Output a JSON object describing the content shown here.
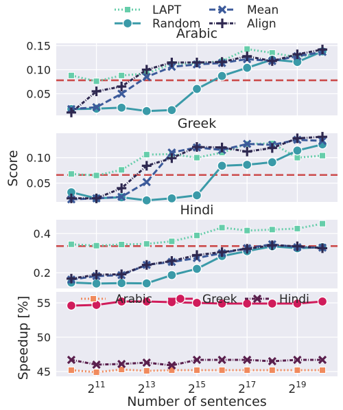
{
  "legend_top": [
    {
      "name": "LAPT",
      "color": "#66cdaa",
      "dash": "2,3",
      "marker": "square"
    },
    {
      "name": "Random",
      "color": "#3a9aa8",
      "dash": "",
      "marker": "circle"
    },
    {
      "name": "Mean",
      "color": "#3c5a9a",
      "dash": "9,4",
      "marker": "x"
    },
    {
      "name": "Align",
      "color": "#2e2850",
      "dash": "5,2,1,2",
      "marker": "plus"
    }
  ],
  "legend_bottom": [
    {
      "name": "Arabic",
      "color": "#f08a5d",
      "dash": "2,3",
      "marker": "square"
    },
    {
      "name": "Greek",
      "color": "#d01c5b",
      "dash": "",
      "marker": "circle"
    },
    {
      "name": "Hindi",
      "color": "#5a1f4d",
      "dash": "5,2,1,2",
      "marker": "x"
    }
  ],
  "chart_data": [
    {
      "type": "line",
      "title": "Arabic",
      "x": [
        10,
        11,
        12,
        13,
        14,
        15,
        16,
        17,
        18,
        19,
        20
      ],
      "ylim": [
        0.005,
        0.155
      ],
      "yticks": [
        {
          "v": 0.05,
          "label": "0.05"
        },
        {
          "v": 0.1,
          "label": "0.10"
        },
        {
          "v": 0.15,
          "label": "0.15"
        }
      ],
      "baseline": 0.078,
      "series": [
        {
          "name": "LAPT",
          "values": [
            0.088,
            0.076,
            0.088,
            0.092,
            0.112,
            0.113,
            0.118,
            0.143,
            0.135,
            0.126,
            0.136
          ]
        },
        {
          "name": "Random",
          "values": [
            0.018,
            0.019,
            0.021,
            0.014,
            0.016,
            0.06,
            0.087,
            0.104,
            0.121,
            0.116,
            0.138
          ]
        },
        {
          "name": "Mean",
          "values": [
            0.018,
            0.022,
            0.05,
            0.085,
            0.106,
            0.111,
            0.114,
            0.122,
            0.118,
            0.128,
            0.137
          ]
        },
        {
          "name": "Align",
          "values": [
            0.011,
            0.055,
            0.065,
            0.1,
            0.115,
            0.115,
            0.116,
            0.128,
            0.118,
            0.132,
            0.142
          ]
        }
      ]
    },
    {
      "type": "line",
      "title": "Greek",
      "x": [
        10,
        11,
        12,
        13,
        14,
        15,
        16,
        17,
        18,
        19,
        20
      ],
      "ylim": [
        0.013,
        0.148
      ],
      "yticks": [
        {
          "v": 0.05,
          "label": "0.05"
        },
        {
          "v": 0.1,
          "label": "0.10"
        }
      ],
      "ylabel": "Score",
      "baseline": 0.066,
      "series": [
        {
          "name": "LAPT",
          "values": [
            0.068,
            0.065,
            0.076,
            0.106,
            0.107,
            0.1,
            0.11,
            0.127,
            0.128,
            0.1,
            0.104
          ]
        },
        {
          "name": "Random",
          "values": [
            0.032,
            0.02,
            0.022,
            0.016,
            0.02,
            0.026,
            0.084,
            0.086,
            0.091,
            0.114,
            0.126
          ]
        },
        {
          "name": "Mean",
          "values": [
            0.018,
            0.02,
            0.023,
            0.052,
            0.11,
            0.12,
            0.115,
            0.127,
            0.125,
            0.135,
            0.133
          ]
        },
        {
          "name": "Align",
          "values": [
            0.02,
            0.02,
            0.04,
            0.084,
            0.099,
            0.121,
            0.12,
            0.112,
            0.119,
            0.138,
            0.141
          ]
        }
      ]
    },
    {
      "type": "line",
      "title": "Hindi",
      "x": [
        10,
        11,
        12,
        13,
        14,
        15,
        16,
        17,
        18,
        19,
        20
      ],
      "ylim": [
        0.12,
        0.47
      ],
      "yticks": [
        {
          "v": 0.2,
          "label": "0.2"
        },
        {
          "v": 0.4,
          "label": "0.4"
        }
      ],
      "baseline": 0.336,
      "series": [
        {
          "name": "LAPT",
          "values": [
            0.345,
            0.338,
            0.344,
            0.347,
            0.36,
            0.39,
            0.43,
            0.415,
            0.42,
            0.425,
            0.45
          ]
        },
        {
          "name": "Random",
          "values": [
            0.15,
            0.145,
            0.147,
            0.146,
            0.188,
            0.22,
            0.285,
            0.31,
            0.335,
            0.325,
            0.33
          ]
        },
        {
          "name": "Mean",
          "values": [
            0.165,
            0.183,
            0.188,
            0.24,
            0.255,
            0.275,
            0.3,
            0.325,
            0.345,
            0.33,
            0.328
          ]
        },
        {
          "name": "Align",
          "values": [
            0.17,
            0.19,
            0.192,
            0.24,
            0.26,
            0.29,
            0.305,
            0.322,
            0.34,
            0.335,
            0.325
          ]
        }
      ]
    },
    {
      "type": "line",
      "title": "",
      "x": [
        10,
        11,
        12,
        13,
        14,
        15,
        16,
        17,
        18,
        19,
        20
      ],
      "ylim": [
        44.3,
        56.6
      ],
      "yticks": [
        {
          "v": 45,
          "label": "45"
        },
        {
          "v": 50,
          "label": "50"
        },
        {
          "v": 55,
          "label": "55"
        }
      ],
      "ylabel": "Speedup [%]",
      "xlabel": "Number of sentences",
      "xticks": [
        {
          "v": 11,
          "base": "2",
          "exp": "11"
        },
        {
          "v": 13,
          "base": "2",
          "exp": "13"
        },
        {
          "v": 15,
          "base": "2",
          "exp": "15"
        },
        {
          "v": 17,
          "base": "2",
          "exp": "17"
        },
        {
          "v": 19,
          "base": "2",
          "exp": "19"
        }
      ],
      "series": [
        {
          "name": "Arabic",
          "values": [
            45.2,
            44.9,
            45.3,
            45.1,
            45.2,
            45.2,
            45.2,
            45.2,
            45.2,
            45.2,
            45.2
          ]
        },
        {
          "name": "Greek",
          "values": [
            54.6,
            54.7,
            55.2,
            55.2,
            55.1,
            55.0,
            54.9,
            54.9,
            54.9,
            54.9,
            55.2
          ]
        },
        {
          "name": "Hindi",
          "values": [
            46.7,
            46.0,
            46.1,
            46.3,
            45.9,
            46.7,
            46.7,
            46.7,
            46.5,
            46.7,
            46.7
          ]
        }
      ]
    }
  ]
}
